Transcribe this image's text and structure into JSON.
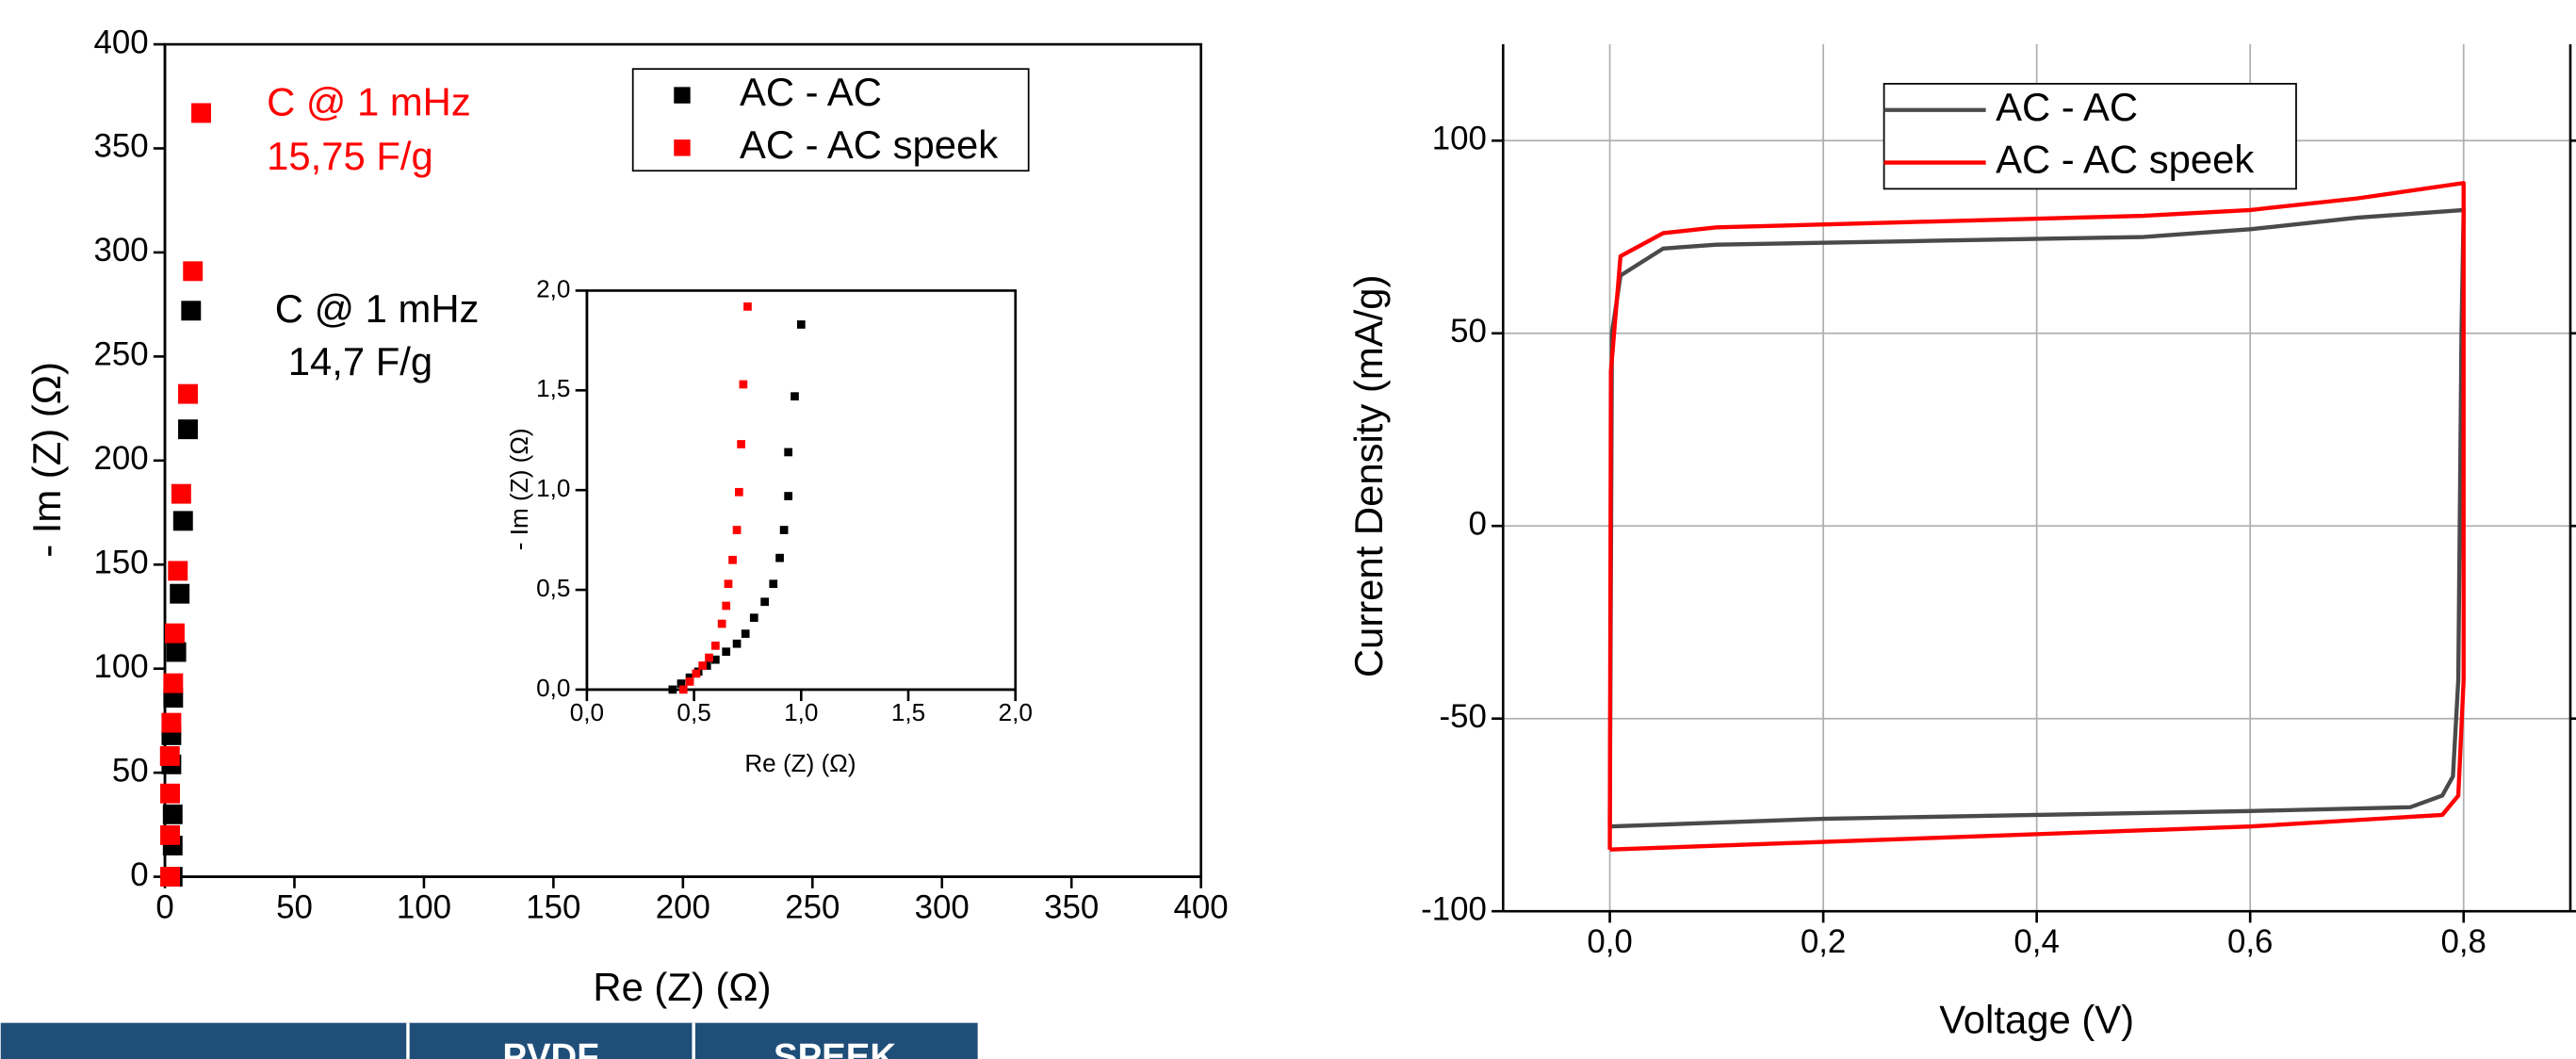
{
  "chart_data": [
    {
      "type": "scatter",
      "xlim": [
        0,
        400
      ],
      "ylim": [
        0,
        400
      ],
      "xticks": [
        0,
        50,
        100,
        150,
        200,
        250,
        300,
        350,
        400
      ],
      "yticks": [
        0,
        50,
        100,
        150,
        200,
        250,
        300,
        350,
        400
      ],
      "xlabel": "Re (Z) (Ω)",
      "ylabel": "- Im (Z) (Ω)",
      "legend": "upper right",
      "grid": false,
      "annotations": [
        {
          "text": "C @ 1 mHz",
          "color": "#ff0000"
        },
        {
          "text": "15,75 F/g",
          "color": "#ff0000"
        },
        {
          "text": "C @ 1 mHz",
          "color": "#000000"
        },
        {
          "text": "14,7 F/g",
          "color": "#000000"
        }
      ],
      "series": [
        {
          "name": "AC - AC",
          "color": "#000000",
          "x": [
            3,
            3,
            3,
            2.5,
            2.5,
            3.2,
            4.4,
            5.7,
            7,
            8.9,
            10.1
          ],
          "values": [
            0,
            15,
            30,
            54,
            68,
            86,
            108,
            136,
            171,
            215,
            272
          ]
        },
        {
          "name": "AC - AC speek",
          "color": "#ff0000",
          "x": [
            2,
            2,
            2,
            1.9,
            2.5,
            3.2,
            3.8,
            5,
            6.3,
            8.9,
            10.8,
            14
          ],
          "values": [
            0,
            20,
            40,
            58,
            74,
            93,
            117,
            147,
            184,
            232,
            291,
            367
          ]
        }
      ]
    },
    {
      "type": "scatter",
      "xlim": [
        0,
        2
      ],
      "ylim": [
        0,
        2
      ],
      "xticks": [
        {
          "value": 0,
          "label": "0,0"
        },
        {
          "value": 0.5,
          "label": "0,5"
        },
        {
          "value": 1,
          "label": "1,0"
        },
        {
          "value": 1.5,
          "label": "1,5"
        },
        {
          "value": 2,
          "label": "2,0"
        }
      ],
      "yticks": [
        {
          "value": 0,
          "label": "0,0"
        },
        {
          "value": 0.5,
          "label": "0,5"
        },
        {
          "value": 1,
          "label": "1,0"
        },
        {
          "value": 1.5,
          "label": "1,5"
        },
        {
          "value": 2,
          "label": "2,0"
        }
      ],
      "xlabel": "Re (Z) (Ω)",
      "ylabel": "- Im (Z) (Ω)",
      "grid": false,
      "series": [
        {
          "color": "#000000",
          "x": [
            0.4,
            0.44,
            0.48,
            0.52,
            0.56,
            0.6,
            0.65,
            0.7,
            0.74,
            0.78,
            0.83,
            0.87,
            0.9,
            0.92,
            0.94,
            0.94,
            0.97,
            1.0
          ],
          "values": [
            0,
            0.03,
            0.06,
            0.09,
            0.12,
            0.15,
            0.19,
            0.23,
            0.28,
            0.36,
            0.44,
            0.53,
            0.66,
            0.8,
            0.97,
            1.19,
            1.47,
            1.83
          ]
        },
        {
          "color": "#ff0000",
          "x": [
            0.45,
            0.48,
            0.51,
            0.54,
            0.57,
            0.6,
            0.63,
            0.65,
            0.66,
            0.68,
            0.7,
            0.71,
            0.72,
            0.73,
            0.75
          ],
          "values": [
            0,
            0.04,
            0.08,
            0.12,
            0.16,
            0.22,
            0.33,
            0.42,
            0.53,
            0.65,
            0.8,
            0.99,
            1.23,
            1.53,
            1.92
          ]
        }
      ]
    },
    {
      "type": "line",
      "xlim": [
        -0.1,
        0.9
      ],
      "ylim": [
        -100,
        125
      ],
      "xticks": [
        {
          "value": 0,
          "label": "0,0"
        },
        {
          "value": 0.2,
          "label": "0,2"
        },
        {
          "value": 0.4,
          "label": "0,4"
        },
        {
          "value": 0.6,
          "label": "0,6"
        },
        {
          "value": 0.8,
          "label": "0,8"
        }
      ],
      "yticks": [
        -100,
        -50,
        0,
        50,
        100
      ],
      "xlabel": "Voltage (V)",
      "ylabel": "Current Density (mA/g)",
      "legend": "upper left",
      "grid": true,
      "series": [
        {
          "name": "AC - AC",
          "color": "#4a4a4a",
          "x": [
            0.0,
            0.002,
            0.01,
            0.05,
            0.1,
            0.3,
            0.5,
            0.6,
            0.7,
            0.8,
            0.798,
            0.795,
            0.79,
            0.78,
            0.75,
            0.6,
            0.4,
            0.2,
            0.0
          ],
          "values": [
            -78,
            50,
            65,
            72,
            73,
            74,
            75,
            77,
            80,
            82,
            50,
            -40,
            -65,
            -70,
            -73,
            -74,
            -75,
            -76,
            -78
          ]
        },
        {
          "name": "AC - AC speek",
          "color": "#ff0000",
          "x": [
            0.0,
            0.001,
            0.01,
            0.05,
            0.1,
            0.3,
            0.5,
            0.6,
            0.7,
            0.8,
            0.8,
            0.795,
            0.78,
            0.6,
            0.4,
            0.2,
            0.0
          ],
          "values": [
            -84,
            40,
            70,
            76,
            77.5,
            79,
            80.5,
            82,
            85,
            89,
            -40,
            -70,
            -75,
            -78,
            -80,
            -82,
            -84
          ]
        }
      ]
    }
  ],
  "table": {
    "headers": [
      "PVDF",
      "SPEEK"
    ]
  }
}
